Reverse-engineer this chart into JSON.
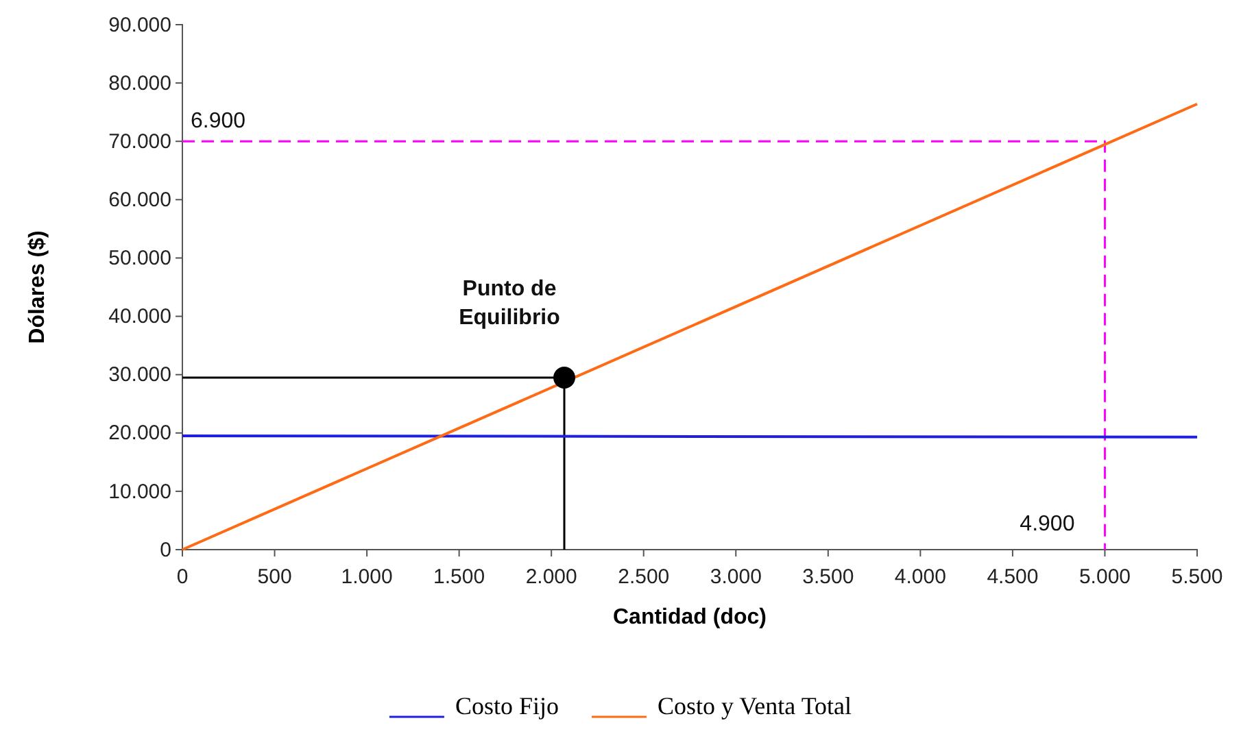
{
  "chart_data": {
    "type": "line",
    "xlabel": "Cantidad (doc)",
    "ylabel": "Dólares ($)",
    "xlim": [
      0,
      5500
    ],
    "ylim": [
      0,
      90000
    ],
    "xticks": [
      0,
      500,
      {
        "value": 1000,
        "label": "1.000"
      },
      {
        "value": 1500,
        "label": "1.500"
      },
      {
        "value": 2000,
        "label": "2.000"
      },
      {
        "value": 2500,
        "label": "2.500"
      },
      {
        "value": 3000,
        "label": "3.000"
      },
      {
        "value": 3500,
        "label": "3.500"
      },
      {
        "value": 4000,
        "label": "4.000"
      },
      {
        "value": 4500,
        "label": "4.500"
      },
      {
        "value": 5000,
        "label": "5.000"
      },
      {
        "value": 5500,
        "label": "5.500"
      }
    ],
    "yticks": [
      0,
      {
        "value": 10000,
        "label": "10.000"
      },
      {
        "value": 20000,
        "label": "20.000"
      },
      {
        "value": 30000,
        "label": "30.000"
      },
      {
        "value": 40000,
        "label": "40.000"
      },
      {
        "value": 50000,
        "label": "50.000"
      },
      {
        "value": 60000,
        "label": "60.000"
      },
      {
        "value": 70000,
        "label": "70.000"
      },
      {
        "value": 80000,
        "label": "80.000"
      },
      {
        "value": 90000,
        "label": "90.000"
      }
    ],
    "grid": false,
    "legend": "bottom",
    "marker": "none",
    "series": [
      {
        "color": "#ff00ff",
        "line_style": "dashed",
        "x": [
          0,
          5000,
          5000
        ],
        "values": [
          70000,
          70000,
          0
        ]
      },
      {
        "color": "#000000",
        "x": [
          0,
          2070,
          2070
        ],
        "values": [
          29500,
          29500,
          0
        ]
      },
      {
        "name": "Costo Fijo",
        "color": "#1f1fe0",
        "x": [
          0,
          5500
        ],
        "values": [
          19500,
          19300
        ]
      },
      {
        "name": "Costo y Venta Total",
        "color": "#ff6a14",
        "x": [
          0,
          5500
        ],
        "values": [
          0,
          76400
        ]
      },
      {
        "type": "scatter",
        "color": "#000000",
        "marker": "circle",
        "x": [
          2070
        ],
        "values": [
          29500
        ]
      }
    ],
    "annotations": [
      {
        "text": "Punto de Equilibrio",
        "x": 2070,
        "y": 29500
      },
      {
        "text": "6.900",
        "x": 0,
        "y": 70000
      },
      {
        "text": "4.900",
        "x": 5000,
        "y": 0
      }
    ]
  }
}
